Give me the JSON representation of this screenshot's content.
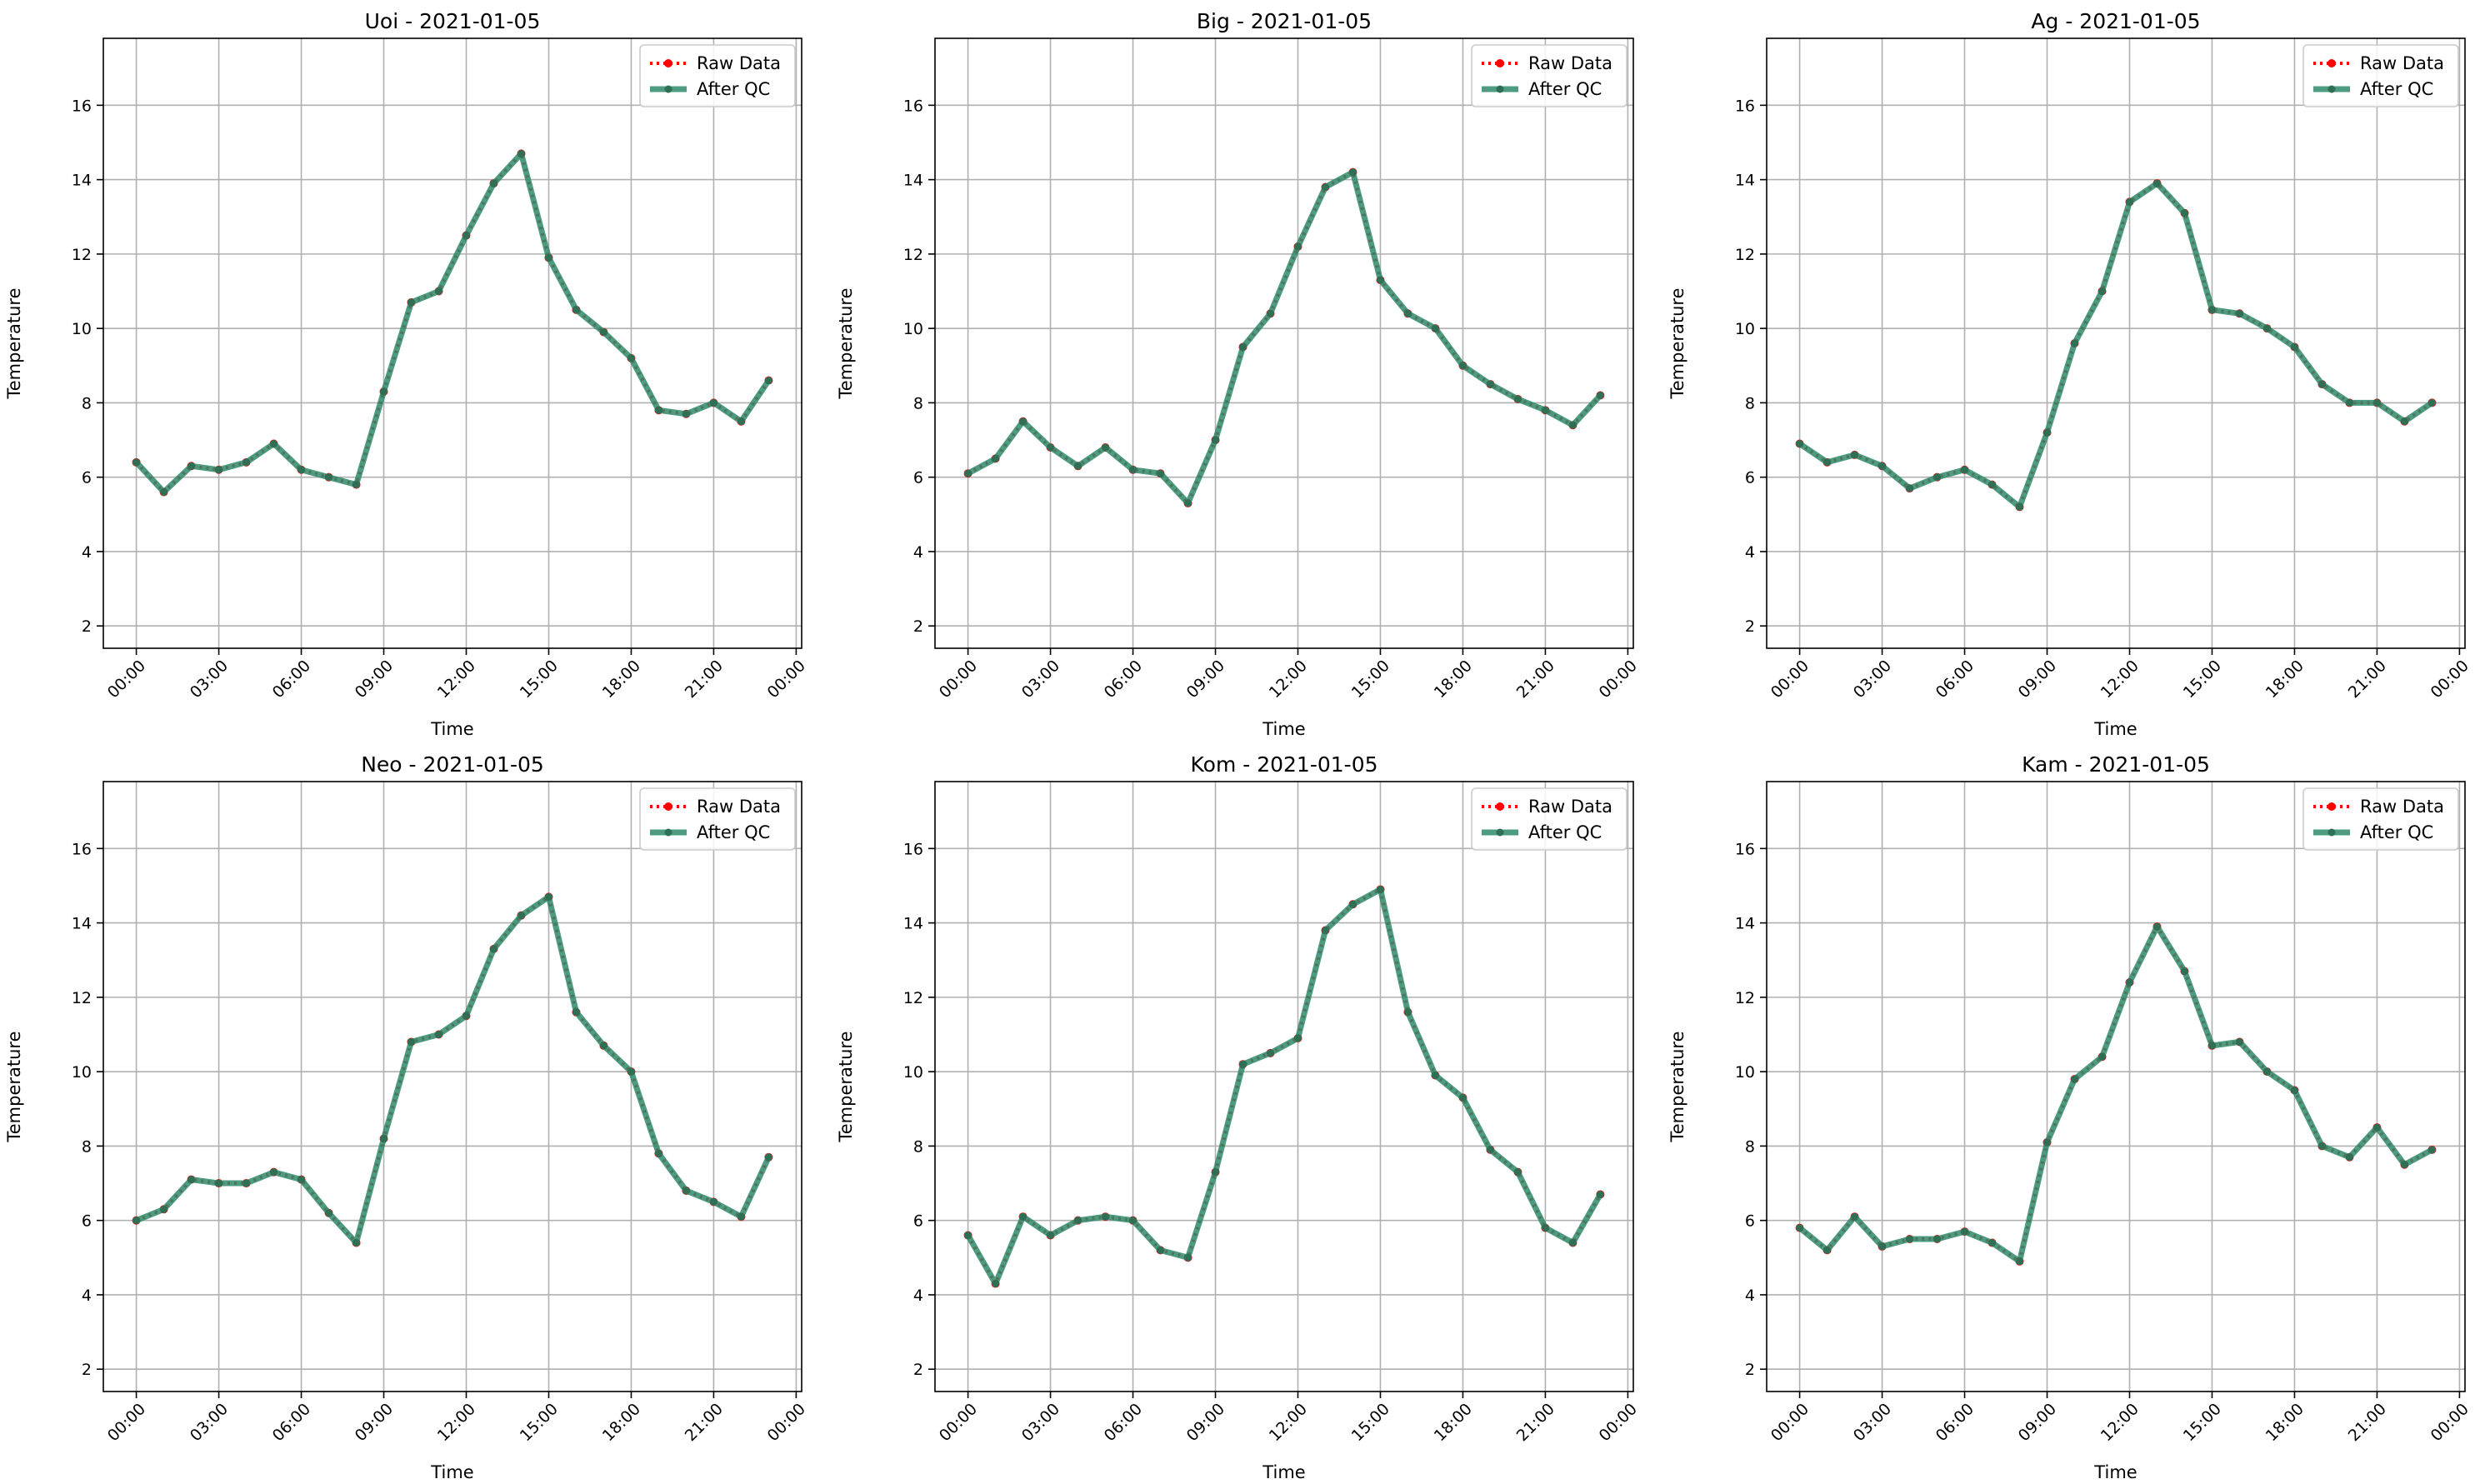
{
  "colors": {
    "raw": "#ff0000",
    "qc": "#2e8b6b",
    "grid": "#b0b0b0",
    "axis": "#000000",
    "legend_border": "#cccccc"
  },
  "chart_data": [
    {
      "type": "line",
      "title": "Uoi - 2021-01-05",
      "xlabel": "Time",
      "ylabel": "Temperature",
      "x_ticks": [
        "00:00",
        "03:00",
        "06:00",
        "09:00",
        "12:00",
        "15:00",
        "18:00",
        "21:00",
        "00:00"
      ],
      "y_ticks": [
        "2",
        "4",
        "6",
        "8",
        "10",
        "12",
        "14",
        "16"
      ],
      "xlim": [
        -1.2,
        24.2
      ],
      "ylim": [
        1.4,
        17.8
      ],
      "grid": true,
      "legend_position": "top-right",
      "x": [
        "00:00",
        "01:00",
        "02:00",
        "03:00",
        "04:00",
        "05:00",
        "06:00",
        "07:00",
        "08:00",
        "09:00",
        "10:00",
        "11:00",
        "12:00",
        "13:00",
        "14:00",
        "15:00",
        "16:00",
        "17:00",
        "18:00",
        "19:00",
        "20:00",
        "21:00",
        "22:00",
        "23:00"
      ],
      "series": [
        {
          "name": "Raw Data",
          "style": "dotted",
          "marker": "circle",
          "values": [
            6.4,
            5.6,
            6.3,
            6.2,
            6.4,
            6.9,
            6.2,
            6.0,
            5.8,
            8.3,
            10.7,
            11.0,
            12.5,
            13.9,
            14.7,
            11.9,
            10.5,
            9.9,
            9.2,
            7.8,
            7.7,
            8.0,
            7.5,
            8.6
          ]
        },
        {
          "name": "After QC",
          "style": "solid",
          "marker": "circle",
          "values": [
            6.4,
            5.6,
            6.3,
            6.2,
            6.4,
            6.9,
            6.2,
            6.0,
            5.8,
            8.3,
            10.7,
            11.0,
            12.5,
            13.9,
            14.7,
            11.9,
            10.5,
            9.9,
            9.2,
            7.8,
            7.7,
            8.0,
            7.5,
            8.6
          ]
        }
      ]
    },
    {
      "type": "line",
      "title": "Big - 2021-01-05",
      "xlabel": "Time",
      "ylabel": "Temperature",
      "x_ticks": [
        "00:00",
        "03:00",
        "06:00",
        "09:00",
        "12:00",
        "15:00",
        "18:00",
        "21:00",
        "00:00"
      ],
      "y_ticks": [
        "2",
        "4",
        "6",
        "8",
        "10",
        "12",
        "14",
        "16"
      ],
      "xlim": [
        -1.2,
        24.2
      ],
      "ylim": [
        1.4,
        17.8
      ],
      "grid": true,
      "legend_position": "top-right",
      "x": [
        "00:00",
        "01:00",
        "02:00",
        "03:00",
        "04:00",
        "05:00",
        "06:00",
        "07:00",
        "08:00",
        "09:00",
        "10:00",
        "11:00",
        "12:00",
        "13:00",
        "14:00",
        "15:00",
        "16:00",
        "17:00",
        "18:00",
        "19:00",
        "20:00",
        "21:00",
        "22:00",
        "23:00"
      ],
      "series": [
        {
          "name": "Raw Data",
          "style": "dotted",
          "marker": "circle",
          "values": [
            6.1,
            6.5,
            7.5,
            6.8,
            6.3,
            6.8,
            6.2,
            6.1,
            5.3,
            7.0,
            9.5,
            10.4,
            12.2,
            13.8,
            14.2,
            11.3,
            10.4,
            10.0,
            9.0,
            8.5,
            8.1,
            7.8,
            7.4,
            8.2
          ]
        },
        {
          "name": "After QC",
          "style": "solid",
          "marker": "circle",
          "values": [
            6.1,
            6.5,
            7.5,
            6.8,
            6.3,
            6.8,
            6.2,
            6.1,
            5.3,
            7.0,
            9.5,
            10.4,
            12.2,
            13.8,
            14.2,
            11.3,
            10.4,
            10.0,
            9.0,
            8.5,
            8.1,
            7.8,
            7.4,
            8.2
          ]
        }
      ]
    },
    {
      "type": "line",
      "title": "Ag - 2021-01-05",
      "xlabel": "Time",
      "ylabel": "Temperature",
      "x_ticks": [
        "00:00",
        "03:00",
        "06:00",
        "09:00",
        "12:00",
        "15:00",
        "18:00",
        "21:00",
        "00:00"
      ],
      "y_ticks": [
        "2",
        "4",
        "6",
        "8",
        "10",
        "12",
        "14",
        "16"
      ],
      "xlim": [
        -1.2,
        24.2
      ],
      "ylim": [
        1.4,
        17.8
      ],
      "grid": true,
      "legend_position": "top-right",
      "x": [
        "00:00",
        "01:00",
        "02:00",
        "03:00",
        "04:00",
        "05:00",
        "06:00",
        "07:00",
        "08:00",
        "09:00",
        "10:00",
        "11:00",
        "12:00",
        "13:00",
        "14:00",
        "15:00",
        "16:00",
        "17:00",
        "18:00",
        "19:00",
        "20:00",
        "21:00",
        "22:00",
        "23:00"
      ],
      "series": [
        {
          "name": "Raw Data",
          "style": "dotted",
          "marker": "circle",
          "values": [
            6.9,
            6.4,
            6.6,
            6.3,
            5.7,
            6.0,
            6.2,
            5.8,
            5.2,
            7.2,
            9.6,
            11.0,
            13.4,
            13.9,
            13.1,
            10.5,
            10.4,
            10.0,
            9.5,
            8.5,
            8.0,
            8.0,
            7.5,
            8.0
          ]
        },
        {
          "name": "After QC",
          "style": "solid",
          "marker": "circle",
          "values": [
            6.9,
            6.4,
            6.6,
            6.3,
            5.7,
            6.0,
            6.2,
            5.8,
            5.2,
            7.2,
            9.6,
            11.0,
            13.4,
            13.9,
            13.1,
            10.5,
            10.4,
            10.0,
            9.5,
            8.5,
            8.0,
            8.0,
            7.5,
            8.0
          ]
        }
      ]
    },
    {
      "type": "line",
      "title": "Neo - 2021-01-05",
      "xlabel": "Time",
      "ylabel": "Temperature",
      "x_ticks": [
        "00:00",
        "03:00",
        "06:00",
        "09:00",
        "12:00",
        "15:00",
        "18:00",
        "21:00",
        "00:00"
      ],
      "y_ticks": [
        "2",
        "4",
        "6",
        "8",
        "10",
        "12",
        "14",
        "16"
      ],
      "xlim": [
        -1.2,
        24.2
      ],
      "ylim": [
        1.4,
        17.8
      ],
      "grid": true,
      "legend_position": "top-right",
      "x": [
        "00:00",
        "01:00",
        "02:00",
        "03:00",
        "04:00",
        "05:00",
        "06:00",
        "07:00",
        "08:00",
        "09:00",
        "10:00",
        "11:00",
        "12:00",
        "13:00",
        "14:00",
        "15:00",
        "16:00",
        "17:00",
        "18:00",
        "19:00",
        "20:00",
        "21:00",
        "22:00",
        "23:00"
      ],
      "series": [
        {
          "name": "Raw Data",
          "style": "dotted",
          "marker": "circle",
          "values": [
            6.0,
            6.3,
            7.1,
            7.0,
            7.0,
            7.3,
            7.1,
            6.2,
            5.4,
            8.2,
            10.8,
            11.0,
            11.5,
            13.3,
            14.2,
            14.7,
            11.6,
            10.7,
            10.0,
            7.8,
            6.8,
            6.5,
            6.1,
            7.7
          ]
        },
        {
          "name": "After QC",
          "style": "solid",
          "marker": "circle",
          "values": [
            6.0,
            6.3,
            7.1,
            7.0,
            7.0,
            7.3,
            7.1,
            6.2,
            5.4,
            8.2,
            10.8,
            11.0,
            11.5,
            13.3,
            14.2,
            14.7,
            11.6,
            10.7,
            10.0,
            7.8,
            6.8,
            6.5,
            6.1,
            7.7
          ]
        }
      ]
    },
    {
      "type": "line",
      "title": "Kom - 2021-01-05",
      "xlabel": "Time",
      "ylabel": "Temperature",
      "x_ticks": [
        "00:00",
        "03:00",
        "06:00",
        "09:00",
        "12:00",
        "15:00",
        "18:00",
        "21:00",
        "00:00"
      ],
      "y_ticks": [
        "2",
        "4",
        "6",
        "8",
        "10",
        "12",
        "14",
        "16"
      ],
      "xlim": [
        -1.2,
        24.2
      ],
      "ylim": [
        1.4,
        17.8
      ],
      "grid": true,
      "legend_position": "top-right",
      "x": [
        "00:00",
        "01:00",
        "02:00",
        "03:00",
        "04:00",
        "05:00",
        "06:00",
        "07:00",
        "08:00",
        "09:00",
        "10:00",
        "11:00",
        "12:00",
        "13:00",
        "14:00",
        "15:00",
        "16:00",
        "17:00",
        "18:00",
        "19:00",
        "20:00",
        "21:00",
        "22:00",
        "23:00"
      ],
      "series": [
        {
          "name": "Raw Data",
          "style": "dotted",
          "marker": "circle",
          "values": [
            5.6,
            4.3,
            6.1,
            5.6,
            6.0,
            6.1,
            6.0,
            5.2,
            5.0,
            7.3,
            10.2,
            10.5,
            10.9,
            13.8,
            14.5,
            14.9,
            11.6,
            9.9,
            9.3,
            7.9,
            7.3,
            5.8,
            5.4,
            6.7
          ]
        },
        {
          "name": "After QC",
          "style": "solid",
          "marker": "circle",
          "values": [
            5.6,
            4.3,
            6.1,
            5.6,
            6.0,
            6.1,
            6.0,
            5.2,
            5.0,
            7.3,
            10.2,
            10.5,
            10.9,
            13.8,
            14.5,
            14.9,
            11.6,
            9.9,
            9.3,
            7.9,
            7.3,
            5.8,
            5.4,
            6.7
          ]
        }
      ]
    },
    {
      "type": "line",
      "title": "Kam - 2021-01-05",
      "xlabel": "Time",
      "ylabel": "Temperature",
      "x_ticks": [
        "00:00",
        "03:00",
        "06:00",
        "09:00",
        "12:00",
        "15:00",
        "18:00",
        "21:00",
        "00:00"
      ],
      "y_ticks": [
        "2",
        "4",
        "6",
        "8",
        "10",
        "12",
        "14",
        "16"
      ],
      "xlim": [
        -1.2,
        24.2
      ],
      "ylim": [
        1.4,
        17.8
      ],
      "grid": true,
      "legend_position": "top-right",
      "x": [
        "00:00",
        "01:00",
        "02:00",
        "03:00",
        "04:00",
        "05:00",
        "06:00",
        "07:00",
        "08:00",
        "09:00",
        "10:00",
        "11:00",
        "12:00",
        "13:00",
        "14:00",
        "15:00",
        "16:00",
        "17:00",
        "18:00",
        "19:00",
        "20:00",
        "21:00",
        "22:00",
        "23:00"
      ],
      "series": [
        {
          "name": "Raw Data",
          "style": "dotted",
          "marker": "circle",
          "values": [
            5.8,
            5.2,
            6.1,
            5.3,
            5.5,
            5.5,
            5.7,
            5.4,
            4.9,
            8.1,
            9.8,
            10.4,
            12.4,
            13.9,
            12.7,
            10.7,
            10.8,
            10.0,
            9.5,
            8.0,
            7.7,
            8.5,
            7.5,
            7.9
          ]
        },
        {
          "name": "After QC",
          "style": "solid",
          "marker": "circle",
          "values": [
            5.8,
            5.2,
            6.1,
            5.3,
            5.5,
            5.5,
            5.7,
            5.4,
            4.9,
            8.1,
            9.8,
            10.4,
            12.4,
            13.9,
            12.7,
            10.7,
            10.8,
            10.0,
            9.5,
            8.0,
            7.7,
            8.5,
            7.5,
            7.9
          ]
        }
      ]
    }
  ]
}
